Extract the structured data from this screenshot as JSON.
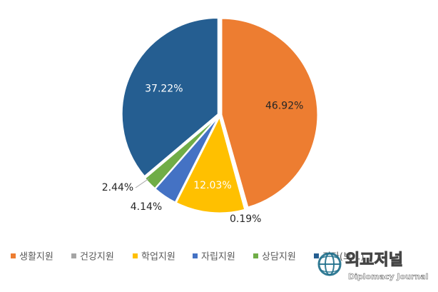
{
  "chart_data": {
    "type": "pie",
    "categories": [
      "생활지원",
      "건강지원",
      "학업지원",
      "자립지원",
      "상담지원",
      "기타(보...)"
    ],
    "values": [
      46.92,
      0.19,
      12.03,
      4.14,
      2.44,
      37.22
    ],
    "data_labels": [
      "46.92%",
      "0.19%",
      "12.03%",
      "4.14%",
      "2.44%",
      "37.22%"
    ],
    "colors": [
      "#ED7D31",
      "#A5A5A5",
      "#FFC000",
      "#4472C4",
      "#70AD47",
      "#255E91"
    ],
    "label_colors": [
      "#262626",
      "#262626",
      "#ffffff",
      "#262626",
      "#262626",
      "#ffffff"
    ],
    "start_angle": 0,
    "direction": "clockwise",
    "legend_position": "bottom",
    "title": ""
  },
  "watermark": {
    "title": "외교저널",
    "subtitle": "Diplomacy Journal"
  }
}
